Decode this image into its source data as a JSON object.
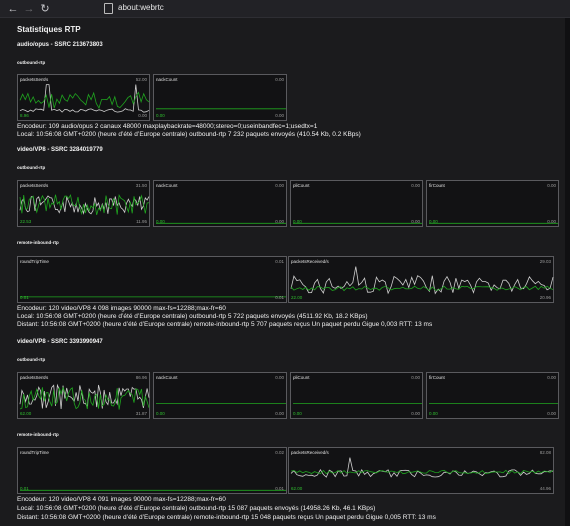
{
  "browser": {
    "back": "←",
    "forward": "→",
    "reload": "↻",
    "url": "about:webrtc"
  },
  "page_title": "Statistiques RTP",
  "colors": {
    "green": "#1fa51f",
    "grey": "#cfcfcf",
    "bg": "#1b1b1d"
  },
  "sections": [
    {
      "title": "audio/opus - SSRC 213673803",
      "outbound_label": "outbound-rtp",
      "graphs": [
        {
          "label": "packetsSent/s",
          "max": "52.00",
          "min": "0.00",
          "current": "8.96"
        },
        {
          "label": "nackCount",
          "max": "0.00",
          "min": "0.00",
          "current": "0.00"
        }
      ],
      "info_lines": [
        "Encodeur: 109 audio/opus  2 canaux 48000 maxplaybackrate=48000;stereo=0;useinbandfec=1;usedtx=1",
        "Local: 10:56:08 GMT+0200 (heure d’été d’Europe centrale) outbound-rtp  7 232 paquets envoyés (410.54 Kb, 0.2 KBps)"
      ]
    },
    {
      "title": "video/VP8 - SSRC 3284019779",
      "outbound_label": "outbound-rtp",
      "outbound_graphs": [
        {
          "label": "packetsSent/s",
          "max": "31.50",
          "min": "11.95",
          "current": "22.53"
        },
        {
          "label": "nackCount",
          "max": "0.00",
          "min": "0.00",
          "current": "0.00"
        },
        {
          "label": "pliCount",
          "max": "0.00",
          "min": "0.00",
          "current": "0.00"
        },
        {
          "label": "firCount",
          "max": "0.00",
          "min": "0.00",
          "current": "0.00"
        }
      ],
      "remote_label": "remote-inbound-rtp",
      "remote_graphs": [
        {
          "label": "roundTripTime",
          "max": "0.01",
          "min": "0.01",
          "current": "0.01"
        },
        {
          "label": "packetsReceived/s",
          "max": "29.03",
          "min": "20.96",
          "current": "22.00"
        }
      ],
      "info_lines": [
        "Encodeur: 120 video/VP8  4 098 images 90000 max-fs=12288;max-fr=60",
        "Local: 10:56:08 GMT+0200 (heure d’été d’Europe centrale) outbound-rtp  5 722 paquets envoyés (4511.92 Kb, 18.2 KBps)",
        "Distant: 10:56:08 GMT+0200 (heure d’été d’Europe centrale) remote-inbound-rtp  5 707 paquets reçus  Un paquet perdu  Gigue 0,003 RTT: 13 ms"
      ]
    },
    {
      "title": "video/VP8 - SSRC 3393990947",
      "outbound_label": "outbound-rtp",
      "outbound_graphs": [
        {
          "label": "packetsSent/s",
          "max": "86.96",
          "min": "31.87",
          "current": "62.00"
        },
        {
          "label": "nackCount",
          "max": "0.00",
          "min": "0.00",
          "current": "0.00"
        },
        {
          "label": "pliCount",
          "max": "0.00",
          "min": "0.00",
          "current": "0.00"
        },
        {
          "label": "firCount",
          "max": "0.00",
          "min": "0.00",
          "current": "0.00"
        }
      ],
      "remote_label": "remote-inbound-rtp",
      "remote_graphs": [
        {
          "label": "roundTripTime",
          "max": "0.02",
          "min": "0.01",
          "current": "0.01"
        },
        {
          "label": "packetsReceived/s",
          "max": "82.08",
          "min": "44.96",
          "current": "62.00"
        }
      ],
      "info_lines": [
        "Encodeur: 120 video/VP8  4 091 images 90000 max-fs=12288;max-fr=60",
        "Local: 10:56:08 GMT+0200 (heure d’été d’Europe centrale) outbound-rtp  15 087 paquets envoyés (14958.26 Kb, 46.1 KBps)",
        "Distant: 10:56:08 GMT+0200 (heure d’été d’Europe centrale) remote-inbound-rtp  15 048 paquets reçus  Un paquet perdu  Gigue 0,005 RTT: 13 ms"
      ]
    }
  ]
}
